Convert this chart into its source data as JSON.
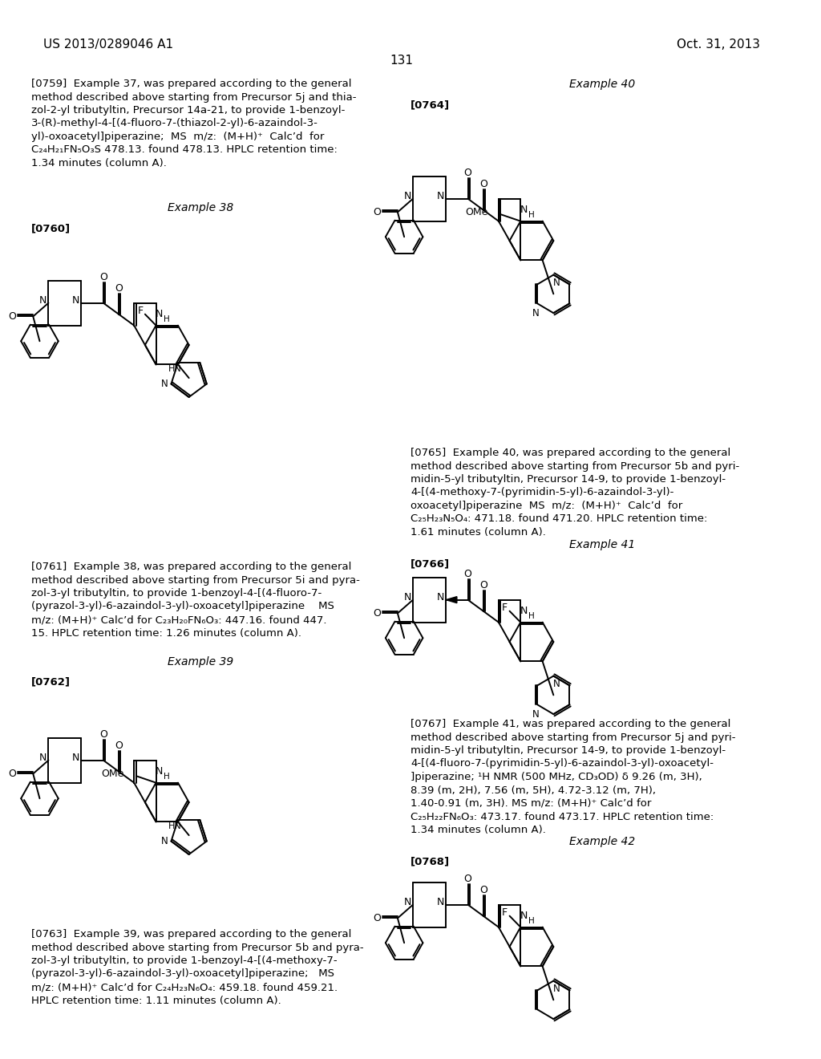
{
  "bg_color": "#ffffff",
  "header_left": "US 2013/0289046 A1",
  "header_right": "Oct. 31, 2013",
  "page_number": "131"
}
